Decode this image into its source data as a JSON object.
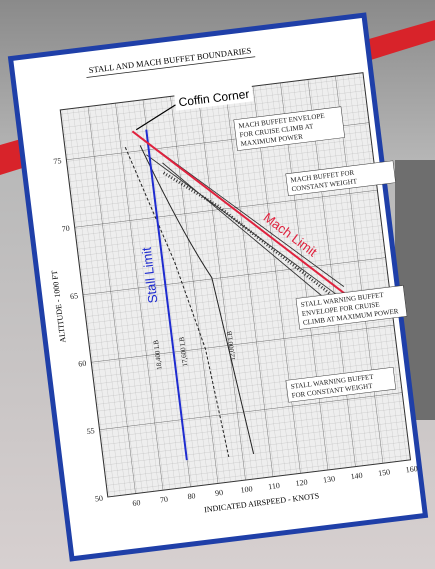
{
  "header": {
    "title": "STALL AND MACH BUFFET BOUNDARIES"
  },
  "axes": {
    "y_label": "ALTITUDE - 1000 FT",
    "x_label": "INDICATED AIRSPEED - KNOTS",
    "y_ticks": [
      75,
      70,
      65,
      60,
      55,
      50
    ],
    "x_ticks": [
      60,
      70,
      80,
      90,
      100,
      110,
      120,
      130,
      140,
      150,
      160
    ]
  },
  "callouts": {
    "coffin_corner": "Coffin Corner",
    "stall_limit": "Stall Limit",
    "mach_limit": "Mach Limit"
  },
  "notes": [
    [
      "MACH BUFFET ENVELOPE",
      "FOR CRUISE CLIMB AT",
      "MAXIMUM POWER"
    ],
    [
      "MACH BUFFET FOR",
      "CONSTANT WEIGHT"
    ],
    [
      "STALL WARNING BUFFET",
      "ENVELOPE FOR CRUISE",
      "CLIMB AT MAXIMUM POWER"
    ],
    [
      "STALL WARNING BUFFET",
      "FOR CONSTANT WEIGHT"
    ]
  ],
  "weights": [
    "18,400 LB",
    "17,600 LB",
    "12,000 LB"
  ]
}
